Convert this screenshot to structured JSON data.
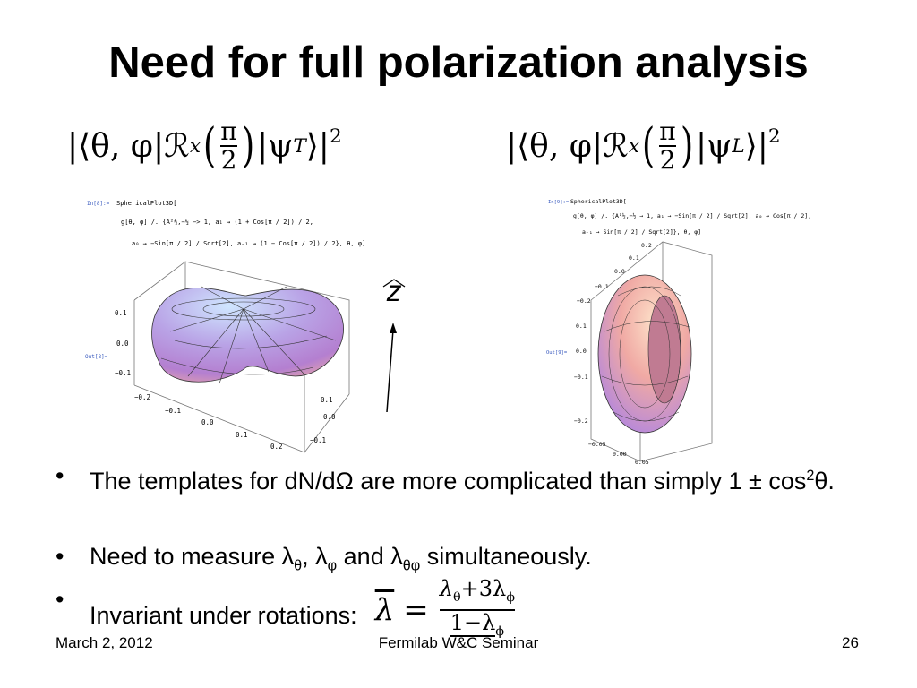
{
  "title": "Need for full polarization analysis",
  "formulas": [
    {
      "prefix": "|⟨θ, φ|",
      "operator": "ℛ",
      "operator_sub": "x",
      "numerator": "π",
      "denominator": "2",
      "ket": "|ψ",
      "ket_sub": "T",
      "suffix": "⟩|",
      "power": "2"
    },
    {
      "prefix": "|⟨θ, φ|",
      "operator": "ℛ",
      "operator_sub": "x",
      "numerator": "π",
      "denominator": "2",
      "ket": "|ψ",
      "ket_sub": "L",
      "suffix": "⟩|",
      "power": "2"
    }
  ],
  "plots": [
    {
      "input_label": "In[8]:=",
      "output_label": "Out[8]=",
      "code": [
        "SphericalPlot3D[",
        "g[θ, φ] /. {A²½,−½ −> 1, a₁ → (1 + Cos[π / 2]) / 2,",
        "a₀ → −Sin[π / 2] / Sqrt[2], a₋₁ → (1 − Cos[π / 2]) / 2}, θ, φ]"
      ],
      "vertical_ticks": [
        "0.1",
        "0.0",
        "−0.1"
      ],
      "bottom_ticks": [
        "−0.2",
        "−0.1",
        "0.0",
        "0.1",
        "0.2"
      ],
      "side_ticks": [
        "0.1",
        "0.0",
        "−0.1"
      ]
    },
    {
      "input_label": "In[9]:=",
      "output_label": "Out[9]=",
      "code": [
        "SphericalPlot3D[",
        "g[θ, φ] /. {A¹½,−½ → 1, a₁ → −Sin[π / 2] / Sqrt[2], a₀ → Cos[π / 2],",
        "a₋₁ → Sin[π / 2] / Sqrt[2]}, θ, φ]"
      ],
      "top_ticks": [
        "0.2",
        "0.1",
        "0.0",
        "−0.1",
        "−0.2"
      ],
      "vertical_ticks": [
        "0.1",
        "0.0",
        "−0.1",
        "−0.2"
      ],
      "bottom_ticks": [
        "−0.05",
        "0.00",
        "0.05"
      ]
    }
  ],
  "axis_label": "z",
  "bullets": [
    {
      "text": "The templates for dN/dΩ are more complicated than simply 1 ± cos",
      "sup": "2",
      "end": "θ."
    },
    {
      "parts": [
        "Need to measure λ",
        "θ",
        ", λ",
        "φ",
        " and λ",
        "θφ",
        " simultaneously."
      ]
    },
    {
      "text": "Invariant under rotations:",
      "formula": {
        "lhs": "λ",
        "equals": "=",
        "num": [
          "λ",
          "θ",
          "+3λ",
          "ϕ"
        ],
        "den": [
          "1−λ",
          "ϕ"
        ]
      }
    }
  ],
  "footer": {
    "date": "March 2, 2012",
    "event": "Fermilab W&C Seminar",
    "page": "26"
  }
}
